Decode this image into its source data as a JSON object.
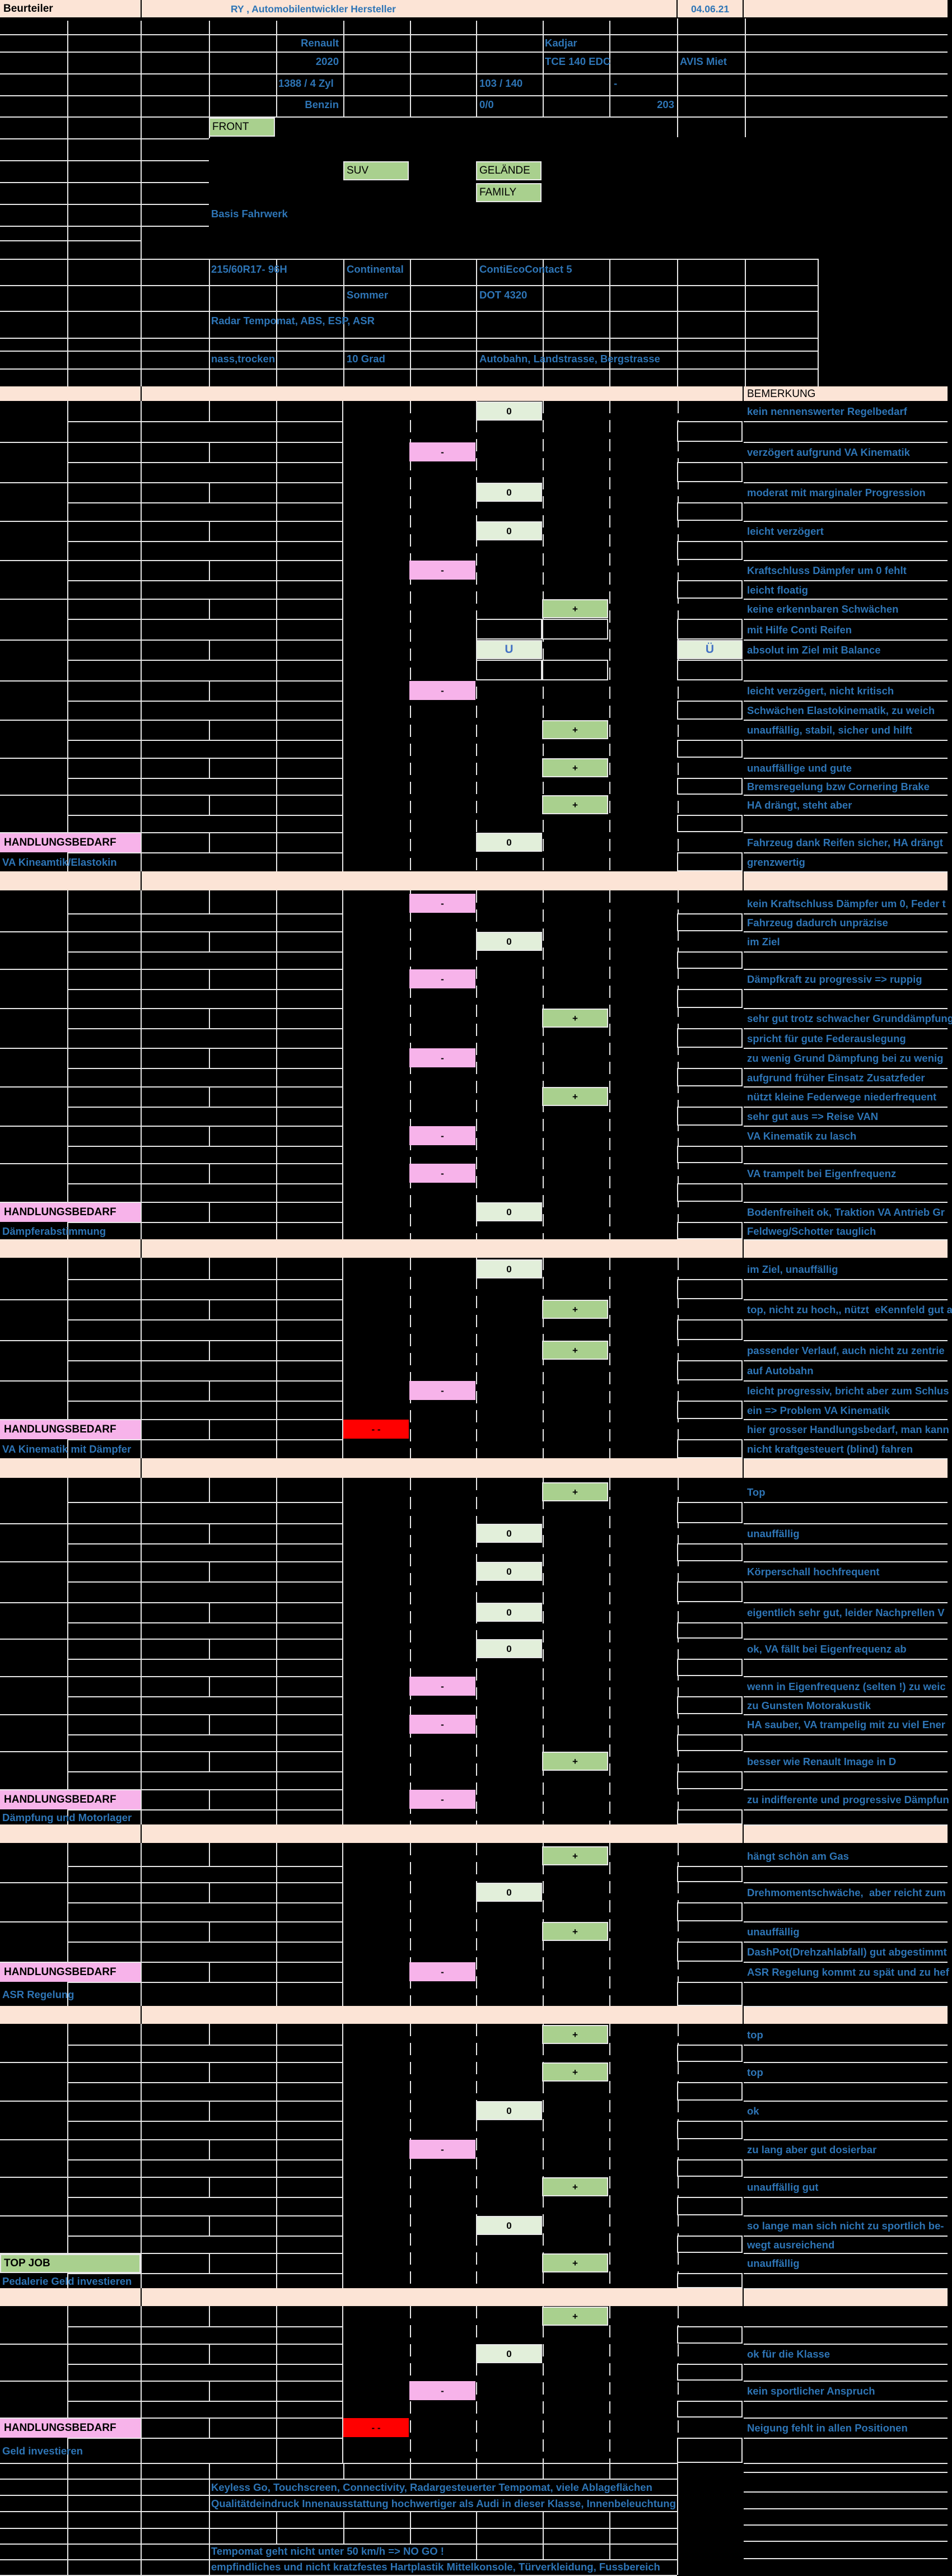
{
  "header": {
    "assessor_label": "Beurteiler",
    "title": "RY , Automobilentwickler Hersteller",
    "date": "04.06.21"
  },
  "vehicle_info": {
    "brand": "Renault",
    "model": "Kadjar",
    "year": "2020",
    "engine": "TCE 140 EDC",
    "rental": "AVIS Miet",
    "displacement": "1388 / 4 Zyl",
    "power_kw_ps": "103 / 140",
    "dash": "-",
    "fuel": "Benzin",
    "zero_zero": "0/0",
    "top_value": "203",
    "drive": "FRONT",
    "body_type": "SUV",
    "segment_a": "GELÄNDE",
    "segment_b": "FAMILY",
    "chassis": "Basis Fahrwerk",
    "tire_size": "215/60R17- 96H",
    "tire_brand": "Continental",
    "tire_model": "ContiEcoContact 5",
    "tire_season": "Sommer",
    "tire_dot": "DOT 4320",
    "assistance": "Radar Tempomat, ABS, ESP, ASR",
    "conditions": "nass,trocken",
    "temperature": "10 Grad",
    "roads": "Autobahn, Landstrasse, Bergstrasse"
  },
  "remark_header": "BEMERKUNG",
  "rating_symbols": {
    "double_minus": "- -",
    "minus": "-",
    "zero": "0",
    "plus": "+",
    "u": "U",
    "ue": "Ü"
  },
  "summary_label": "HANDLUNGSBEDARF",
  "topjob_label": "TOP JOB",
  "sections": [
    {
      "items": [
        {
          "rating": "0",
          "comment": "kein nennenswerter Regelbedarf",
          "sub": ""
        },
        {
          "rating": "-",
          "comment": "verzögert aufgrund VA Kinematik",
          "sub": ""
        },
        {
          "rating": "0",
          "comment": "moderat mit marginaler Progression",
          "sub": ""
        },
        {
          "rating": "0",
          "comment": "leicht verzögert",
          "sub": ""
        },
        {
          "rating": "-",
          "comment": "Kraftschluss Dämpfer um 0 fehlt",
          "sub": "leicht floatig"
        },
        {
          "rating": "+",
          "comment": "keine erkennbaren Schwächen",
          "sub": "mit Hilfe Conti Reifen"
        },
        {
          "rating": "U",
          "comment": "absolut im Ziel mit Balance",
          "sub": ""
        },
        {
          "rating": "-",
          "comment": "leicht verzögert, nicht kritisch",
          "sub": "Schwächen Elastokinematik, zu weich"
        },
        {
          "rating": "+",
          "comment": "unauffällig, stabil, sicher und hilft",
          "sub": ""
        },
        {
          "rating": "+",
          "comment": "unauffällige und gute",
          "sub": "Bremsregelung bzw Cornering Brake"
        },
        {
          "rating": "+",
          "comment": "HA drängt, steht aber",
          "sub": ""
        }
      ],
      "summary": {
        "type": "need",
        "label2": "VA Kineamtik/Elastokin",
        "rating": "0",
        "comment": "Fahrzeug dank Reifen sicher, HA drängt",
        "sub": "grenzwertig"
      }
    },
    {
      "items": [
        {
          "rating": "-",
          "comment": "kein Kraftschluss Dämpfer um 0, Feder t",
          "sub": "Fahrzeug dadurch unpräzise"
        },
        {
          "rating": "0",
          "comment": "im Ziel",
          "sub": ""
        },
        {
          "rating": "-",
          "comment": "Dämpfkraft zu progressiv => ruppig",
          "sub": ""
        },
        {
          "rating": "+",
          "comment": "sehr gut trotz schwacher Grunddämpfung",
          "sub": "spricht für gute Federauslegung"
        },
        {
          "rating": "-",
          "comment": "zu wenig Grund Dämpfung bei zu wenig",
          "sub": "aufgrund früher Einsatz Zusatzfeder"
        },
        {
          "rating": "+",
          "comment": "nützt kleine Federwege niederfrequent",
          "sub": "sehr gut aus => Reise VAN"
        },
        {
          "rating": "-",
          "comment": "VA Kinematik zu lasch",
          "sub": ""
        },
        {
          "rating": "-",
          "comment": "VA trampelt bei Eigenfrequenz",
          "sub": ""
        }
      ],
      "summary": {
        "type": "need",
        "label2": "Dämpferabstimmung",
        "rating": "0",
        "comment": "Bodenfreiheit ok, Traktion VA Antrieb Gr",
        "sub": "Feldweg/Schotter tauglich"
      }
    },
    {
      "items": [
        {
          "rating": "0",
          "comment": "im Ziel, unauffällig",
          "sub": ""
        },
        {
          "rating": "+",
          "comment": "top, nicht zu hoch,, nützt  eKennfeld gut a",
          "sub": ""
        },
        {
          "rating": "+",
          "comment": "passender Verlauf, auch nicht zu zentrie",
          "sub": "auf Autobahn"
        },
        {
          "rating": "-",
          "comment": "leicht progressiv, bricht aber zum Schlus",
          "sub": "ein => Problem VA Kinematik"
        }
      ],
      "summary": {
        "type": "need",
        "label2": "VA Kinematik mit Dämpfer",
        "rating": "--",
        "comment": "hier grosser Handlungsbedarf, man kann",
        "sub": "nicht kraftgesteuert (blind) fahren"
      }
    },
    {
      "items": [
        {
          "rating": "+",
          "comment": "Top",
          "sub": ""
        },
        {
          "rating": "0",
          "comment": "unauffällig",
          "sub": ""
        },
        {
          "rating": "0",
          "comment": "Körperschall hochfrequent",
          "sub": ""
        },
        {
          "rating": "0",
          "comment": "eigentlich sehr gut, leider Nachprellen V",
          "sub": ""
        },
        {
          "rating": "0",
          "comment": "ok, VA fällt bei Eigenfrequenz ab",
          "sub": ""
        },
        {
          "rating": "-",
          "comment": "wenn in Eigenfrequenz (selten !) zu weic",
          "sub": "zu Gunsten Motorakustik"
        },
        {
          "rating": "-",
          "comment": "HA sauber, VA trampelig mit zu viel Ener",
          "sub": ""
        },
        {
          "rating": "+",
          "comment": "besser wie Renault Image in D",
          "sub": ""
        }
      ],
      "summary": {
        "type": "need",
        "label2": "Dämpfung und Motorlager",
        "rating": "-",
        "comment": "zu indifferente und progressive Dämpfun",
        "sub": ""
      }
    },
    {
      "items": [
        {
          "rating": "+",
          "comment": "hängt schön am Gas",
          "sub": ""
        },
        {
          "rating": "0",
          "comment": "Drehmomentschwäche,  aber reicht zum",
          "sub": ""
        },
        {
          "rating": "+",
          "comment": "unauffällig",
          "sub": "DashPot(Drehzahlabfall) gut abgestimmt"
        }
      ],
      "summary": {
        "type": "need",
        "label2": "ASR Regelung",
        "rating": "-",
        "comment": "ASR Regelung kommt zu spät und zu hef",
        "sub": ""
      }
    },
    {
      "items": [
        {
          "rating": "+",
          "comment": "top",
          "sub": ""
        },
        {
          "rating": "+",
          "comment": "top",
          "sub": ""
        },
        {
          "rating": "0",
          "comment": "ok",
          "sub": ""
        },
        {
          "rating": "-",
          "comment": "zu lang aber gut dosierbar",
          "sub": ""
        },
        {
          "rating": "+",
          "comment": "unauffällig gut",
          "sub": ""
        },
        {
          "rating": "0",
          "comment": "so lange man sich nicht zu sportlich be-",
          "sub": "wegt ausreichend"
        }
      ],
      "summary": {
        "type": "topjob",
        "label2": "Pedalerie Geld investieren",
        "rating": "+",
        "comment": "unauffällig",
        "sub": ""
      }
    },
    {
      "items": [
        {
          "rating": "+",
          "comment": "",
          "sub": ""
        },
        {
          "rating": "0",
          "comment": "ok für die Klasse",
          "sub": ""
        },
        {
          "rating": "-",
          "comment": "kein sportlicher Anspruch",
          "sub": ""
        }
      ],
      "summary": {
        "type": "need",
        "label2": "Geld investieren",
        "rating": "--",
        "comment": "Neigung fehlt in allen Positionen",
        "sub": ""
      }
    }
  ],
  "footer_notes": [
    "Keyless Go, Touchscreen, Connectivity, Radargesteuerter Tempomat, viele Ablageflächen",
    "Qualitätdeindruck Innenausstattung hochwertiger als Audi in dieser Klasse, Innenbeleuchtung",
    "Tempomat geht nicht unter 50 km/h => NO GO !",
    "empfindliches und nicht kratzfestes Hartplastik Mittelkonsole, Türverkleidung, Fussbereich"
  ],
  "colors": {
    "background": "#000000",
    "grid": "#E8E8E8",
    "band": "#FCE4D6",
    "green": "#A9D08E",
    "light_green": "#E2EFDA",
    "pink": "#F7B3EA",
    "red": "#FF0000",
    "text_blue": "#2E75B6",
    "text_blue_bright": "#4472C4",
    "text_black": "#000000"
  }
}
